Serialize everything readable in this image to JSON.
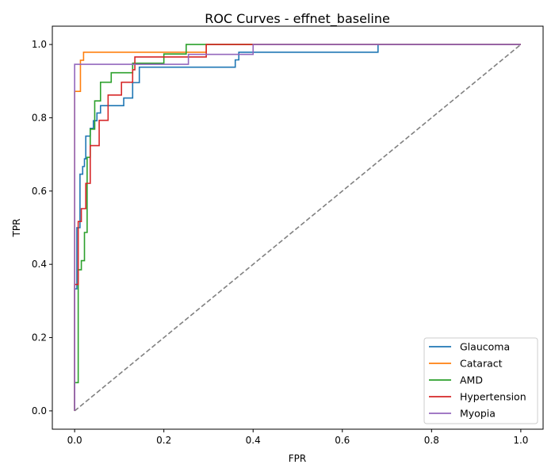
{
  "chart_data": {
    "type": "line",
    "title": "ROC Curves - effnet_baseline",
    "xlabel": "FPR",
    "ylabel": "TPR",
    "xlim": [
      -0.05,
      1.05
    ],
    "ylim": [
      -0.05,
      1.05
    ],
    "xticks": [
      0.0,
      0.2,
      0.4,
      0.6,
      0.8,
      1.0
    ],
    "yticks": [
      0.0,
      0.2,
      0.4,
      0.6,
      0.8,
      1.0
    ],
    "xtick_labels": [
      "0.0",
      "0.2",
      "0.4",
      "0.6",
      "0.8",
      "1.0"
    ],
    "ytick_labels": [
      "0.0",
      "0.2",
      "0.4",
      "0.6",
      "0.8",
      "1.0"
    ],
    "grid": false,
    "legend_position": "lower-right",
    "reference_line": {
      "style": "dashed",
      "color": "#808080",
      "x": [
        0,
        1
      ],
      "y": [
        0,
        1
      ]
    },
    "series": [
      {
        "name": "Glaucoma",
        "color": "#1f77b4",
        "x": [
          0,
          0,
          0.005,
          0.005,
          0.012,
          0.012,
          0.018,
          0.018,
          0.022,
          0.022,
          0.025,
          0.025,
          0.028,
          0.028,
          0.035,
          0.035,
          0.042,
          0.042,
          0.05,
          0.05,
          0.058,
          0.058,
          0.065,
          0.065,
          0.08,
          0.08,
          0.11,
          0.11,
          0.13,
          0.13,
          0.145,
          0.145,
          0.36,
          0.36,
          0.368,
          0.368,
          0.68,
          0.68,
          1.0
        ],
        "y": [
          0,
          0.333,
          0.333,
          0.5,
          0.5,
          0.646,
          0.646,
          0.667,
          0.667,
          0.688,
          0.688,
          0.75,
          0.75,
          0.75,
          0.75,
          0.771,
          0.771,
          0.792,
          0.792,
          0.813,
          0.813,
          0.833,
          0.833,
          0.833,
          0.833,
          0.833,
          0.833,
          0.854,
          0.854,
          0.896,
          0.896,
          0.938,
          0.938,
          0.958,
          0.958,
          0.979,
          0.979,
          1.0,
          1.0
        ]
      },
      {
        "name": "Cataract",
        "color": "#ff7f0e",
        "x": [
          0,
          0,
          0.013,
          0.013,
          0.02,
          0.02,
          0.295,
          0.295,
          1.0
        ],
        "y": [
          0,
          0.872,
          0.872,
          0.957,
          0.957,
          0.979,
          0.979,
          1.0,
          1.0
        ]
      },
      {
        "name": "AMD",
        "color": "#2ca02c",
        "x": [
          0,
          0,
          0.008,
          0.008,
          0.015,
          0.015,
          0.022,
          0.022,
          0.028,
          0.028,
          0.035,
          0.035,
          0.045,
          0.045,
          0.058,
          0.058,
          0.082,
          0.082,
          0.13,
          0.13,
          0.2,
          0.2,
          0.25,
          0.25,
          1.0
        ],
        "y": [
          0,
          0.077,
          0.077,
          0.385,
          0.385,
          0.41,
          0.41,
          0.487,
          0.487,
          0.692,
          0.692,
          0.769,
          0.769,
          0.846,
          0.846,
          0.897,
          0.897,
          0.923,
          0.923,
          0.949,
          0.949,
          0.974,
          0.974,
          1.0,
          1.0
        ]
      },
      {
        "name": "Hypertension",
        "color": "#d62728",
        "x": [
          0,
          0,
          0.008,
          0.008,
          0.015,
          0.015,
          0.025,
          0.025,
          0.035,
          0.035,
          0.055,
          0.055,
          0.075,
          0.075,
          0.105,
          0.105,
          0.13,
          0.13,
          0.135,
          0.135,
          0.255,
          0.255,
          0.295,
          0.295,
          1.0
        ],
        "y": [
          0,
          0.345,
          0.345,
          0.517,
          0.517,
          0.552,
          0.552,
          0.621,
          0.621,
          0.724,
          0.724,
          0.793,
          0.793,
          0.862,
          0.862,
          0.897,
          0.897,
          0.931,
          0.931,
          0.966,
          0.966,
          0.966,
          0.966,
          1.0,
          1.0
        ]
      },
      {
        "name": "Myopia",
        "color": "#9467bd",
        "x": [
          0,
          0,
          0.255,
          0.255,
          0.4,
          0.4,
          1.0
        ],
        "y": [
          0,
          0.946,
          0.946,
          0.973,
          0.973,
          1.0,
          1.0
        ]
      }
    ]
  }
}
